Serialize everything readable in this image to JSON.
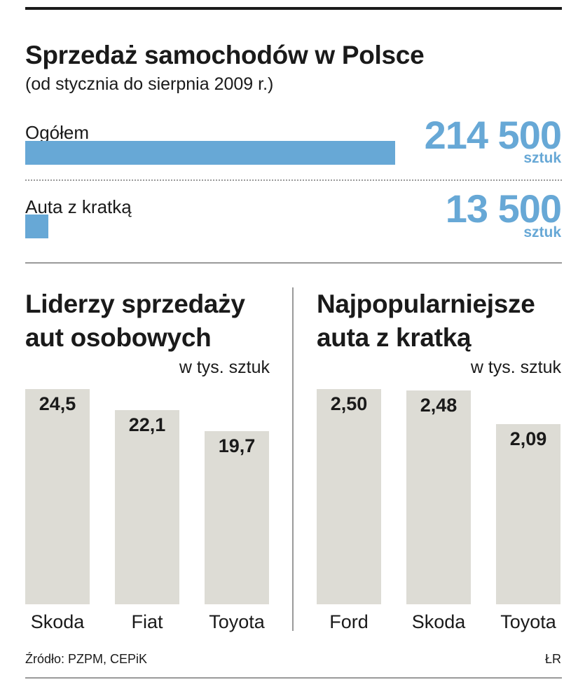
{
  "header": {
    "title": "Sprzedaż samochodów w Polsce",
    "subtitle": "(od stycznia do sierpnia 2009 r.)"
  },
  "totals": [
    {
      "label": "Ogółem",
      "value": 214500,
      "display": "214 500",
      "unit": "sztuk",
      "color": "#67a8d6"
    },
    {
      "label": "Auta z kratką",
      "value": 13500,
      "display": "13 500",
      "unit": "sztuk",
      "color": "#67a8d6"
    }
  ],
  "chart_data": [
    {
      "type": "bar",
      "title": "Liderzy sprzedaży aut osobowych",
      "unit_label": "w tys. sztuk",
      "categories": [
        "Skoda",
        "Fiat",
        "Toyota"
      ],
      "values": [
        24.5,
        22.1,
        19.7
      ],
      "value_labels": [
        "24,5",
        "22,1",
        "19,7"
      ],
      "bar_color": "#dddcd5"
    },
    {
      "type": "bar",
      "title": "Najpopularniejsze auta z kratką",
      "unit_label": "w tys. sztuk",
      "categories": [
        "Ford",
        "Skoda",
        "Toyota"
      ],
      "values": [
        2.5,
        2.48,
        2.09
      ],
      "value_labels": [
        "2,50",
        "2,48",
        "2,09"
      ],
      "bar_color": "#dddcd5"
    }
  ],
  "panel_titles": {
    "left": [
      "Liderzy sprzedaży",
      "aut osobowych"
    ],
    "right": [
      "Najpopularniejsze",
      "auta z kratką"
    ]
  },
  "footer": {
    "source": "Źródło: PZPM, CEPiK",
    "credit": "ŁR"
  }
}
